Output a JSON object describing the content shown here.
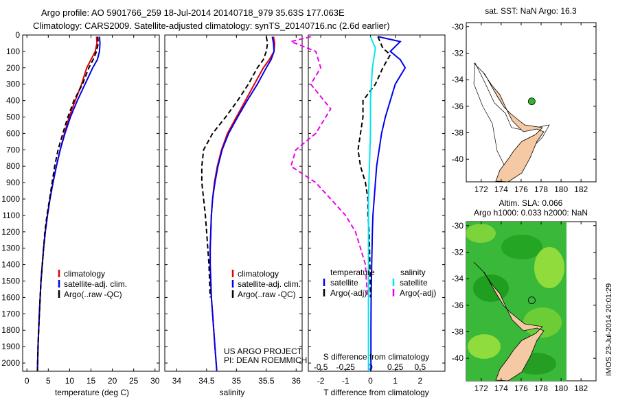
{
  "header": {
    "line1": "Argo profile: AO 5901766_259 18-Jul-2014 20140718_979 35.63S 177.063E",
    "line2": "Climatology: CARS2009. Satellite-adjusted climatology: synTS_20140716.nc (2.6d earlier)"
  },
  "colors": {
    "climatology": "#e00000",
    "satellite": "#0000ee",
    "argo": "#000000",
    "sal_satellite": "#00e5ee",
    "sal_argo": "#ee00ee",
    "land": "#f5c9a3",
    "sla_green": "#2fb82f"
  },
  "legend_profiles": {
    "climatology": "climatology",
    "satellite": "satellite-adj. clim.",
    "argo": "Argo(..raw -QC)"
  },
  "legend_diff": {
    "temperature_title": "temperature",
    "salinity_title": "salinity",
    "t_satellite": "satellite",
    "t_argo": "Argo(-adj)",
    "s_satellite": "satellite",
    "s_argo": "Argo(-adj)"
  },
  "credit": {
    "line1": "US ARGO PROJECT",
    "line2": "PI: DEAN ROEMMICH"
  },
  "map_top": {
    "title": "sat. SST: NaN Argo: 16.3"
  },
  "map_bottom": {
    "title1": "Altim. SLA: 0.066",
    "title2": "Argo h1000: 0.033 h2000: NaN"
  },
  "watermark": "IMOS 23-Jul-2014 20:01:29",
  "chart_data": [
    {
      "type": "line",
      "xlabel": "temperature (deg C)",
      "ylabel": "",
      "xlim": [
        -1,
        31
      ],
      "ylim": [
        2050,
        0
      ],
      "xticks": [
        "0",
        "5",
        "10",
        "15",
        "20",
        "25",
        "30"
      ],
      "yticks": [
        "0",
        "100",
        "200",
        "300",
        "400",
        "500",
        "600",
        "700",
        "800",
        "900",
        "1000",
        "1100",
        "1200",
        "1300",
        "1400",
        "1500",
        "1600",
        "1700",
        "1800",
        "1900",
        "2000"
      ],
      "series": [
        {
          "name": "climatology",
          "style": "solid",
          "color": "#e00000",
          "points": [
            [
              16.3,
              10
            ],
            [
              16.4,
              50
            ],
            [
              16.0,
              100
            ],
            [
              15.0,
              150
            ],
            [
              14.0,
              200
            ],
            [
              12.8,
              300
            ],
            [
              11.3,
              400
            ],
            [
              9.9,
              500
            ],
            [
              8.8,
              600
            ],
            [
              7.8,
              700
            ],
            [
              6.9,
              800
            ],
            [
              6.1,
              900
            ],
            [
              5.4,
              1000
            ],
            [
              4.8,
              1100
            ],
            [
              4.3,
              1200
            ],
            [
              3.9,
              1300
            ],
            [
              3.6,
              1400
            ],
            [
              3.3,
              1500
            ],
            [
              3.1,
              1600
            ],
            [
              2.9,
              1700
            ],
            [
              2.75,
              1800
            ],
            [
              2.6,
              1900
            ],
            [
              2.5,
              2000
            ],
            [
              2.45,
              2050
            ]
          ]
        },
        {
          "name": "satellite-adj. clim.",
          "style": "solid",
          "color": "#0000ee",
          "points": [
            [
              17.0,
              10
            ],
            [
              17.1,
              50
            ],
            [
              17.0,
              100
            ],
            [
              16.5,
              150
            ],
            [
              15.4,
              200
            ],
            [
              13.6,
              300
            ],
            [
              11.8,
              400
            ],
            [
              10.2,
              500
            ],
            [
              8.9,
              600
            ],
            [
              7.8,
              700
            ],
            [
              6.9,
              800
            ],
            [
              6.1,
              900
            ],
            [
              5.4,
              1000
            ],
            [
              4.8,
              1100
            ],
            [
              4.3,
              1200
            ],
            [
              3.9,
              1300
            ],
            [
              3.6,
              1400
            ],
            [
              3.3,
              1500
            ],
            [
              3.1,
              1600
            ],
            [
              2.9,
              1700
            ],
            [
              2.75,
              1800
            ],
            [
              2.6,
              1900
            ],
            [
              2.5,
              2000
            ],
            [
              2.45,
              2050
            ]
          ]
        },
        {
          "name": "Argo(..raw -QC)",
          "style": "dashed",
          "color": "#000000",
          "points": [
            [
              16.6,
              10
            ],
            [
              16.7,
              50
            ],
            [
              16.3,
              100
            ],
            [
              15.5,
              150
            ],
            [
              14.5,
              200
            ],
            [
              13.0,
              300
            ],
            [
              11.0,
              400
            ],
            [
              9.6,
              500
            ],
            [
              8.4,
              600
            ],
            [
              7.3,
              700
            ],
            [
              6.5,
              800
            ],
            [
              5.9,
              900
            ],
            [
              5.3,
              1000
            ],
            [
              4.7,
              1100
            ],
            [
              4.2,
              1200
            ],
            [
              3.9,
              1300
            ],
            [
              3.6,
              1400
            ],
            [
              3.3,
              1500
            ],
            [
              3.1,
              1600
            ],
            [
              2.9,
              1700
            ],
            [
              2.75,
              1800
            ],
            [
              2.6,
              1900
            ],
            [
              2.5,
              2000
            ],
            [
              2.45,
              2050
            ]
          ]
        }
      ]
    },
    {
      "type": "line",
      "xlabel": "salinity",
      "ylabel": "",
      "xlim": [
        33.8,
        36.1
      ],
      "ylim": [
        2050,
        0
      ],
      "xticks": [
        "34",
        "34.5",
        "35",
        "35.5",
        "36"
      ],
      "series": [
        {
          "name": "climatology",
          "style": "solid",
          "color": "#e00000",
          "points": [
            [
              35.62,
              10
            ],
            [
              35.64,
              50
            ],
            [
              35.63,
              100
            ],
            [
              35.55,
              150
            ],
            [
              35.45,
              200
            ],
            [
              35.3,
              300
            ],
            [
              35.15,
              400
            ],
            [
              35.0,
              500
            ],
            [
              34.85,
              600
            ],
            [
              34.75,
              700
            ],
            [
              34.68,
              800
            ],
            [
              34.63,
              900
            ],
            [
              34.6,
              1000
            ],
            [
              34.58,
              1100
            ],
            [
              34.57,
              1200
            ],
            [
              34.56,
              1300
            ],
            [
              34.56,
              1400
            ],
            [
              34.57,
              1500
            ],
            [
              34.58,
              1600
            ],
            [
              34.6,
              1700
            ],
            [
              34.62,
              1800
            ],
            [
              34.64,
              1900
            ],
            [
              34.66,
              2000
            ],
            [
              34.67,
              2050
            ]
          ]
        },
        {
          "name": "satellite-adj. clim.",
          "style": "solid",
          "color": "#0000ee",
          "points": [
            [
              35.6,
              10
            ],
            [
              35.62,
              50
            ],
            [
              35.63,
              100
            ],
            [
              35.58,
              150
            ],
            [
              35.5,
              200
            ],
            [
              35.35,
              300
            ],
            [
              35.18,
              400
            ],
            [
              35.02,
              500
            ],
            [
              34.87,
              600
            ],
            [
              34.76,
              700
            ],
            [
              34.69,
              800
            ],
            [
              34.64,
              900
            ],
            [
              34.6,
              1000
            ],
            [
              34.58,
              1100
            ],
            [
              34.57,
              1200
            ],
            [
              34.56,
              1300
            ],
            [
              34.56,
              1400
            ],
            [
              34.57,
              1500
            ],
            [
              34.58,
              1600
            ],
            [
              34.6,
              1700
            ],
            [
              34.62,
              1800
            ],
            [
              34.64,
              1900
            ],
            [
              34.66,
              2000
            ],
            [
              34.67,
              2050
            ]
          ]
        },
        {
          "name": "Argo(..raw -QC)",
          "style": "dashed",
          "color": "#000000",
          "points": [
            [
              35.5,
              10
            ],
            [
              35.52,
              50
            ],
            [
              35.5,
              100
            ],
            [
              35.45,
              150
            ],
            [
              35.35,
              200
            ],
            [
              35.2,
              300
            ],
            [
              35.02,
              400
            ],
            [
              34.82,
              500
            ],
            [
              34.6,
              600
            ],
            [
              34.45,
              700
            ],
            [
              34.42,
              800
            ],
            [
              34.42,
              900
            ],
            [
              34.45,
              1000
            ],
            [
              34.48,
              1100
            ],
            [
              34.5,
              1200
            ],
            [
              34.52,
              1300
            ],
            [
              34.54,
              1400
            ],
            [
              34.55,
              1500
            ],
            [
              34.56,
              1600
            ]
          ]
        }
      ]
    },
    {
      "type": "line",
      "xlabel": "T difference from climatology",
      "xlabel2": "S difference from climatology",
      "xlim": [
        -2.5,
        3.0
      ],
      "ylim": [
        2050,
        0
      ],
      "xticks": [
        "-2",
        "-1",
        "0",
        "1",
        "2"
      ],
      "xticks2": [
        "-0.5",
        "-0.25",
        "0",
        "0.25",
        "0.5"
      ],
      "series": [
        {
          "name": "temperature satellite",
          "style": "solid",
          "color": "#0000ee",
          "points": [
            [
              0.3,
              10
            ],
            [
              1.2,
              40
            ],
            [
              0.8,
              100
            ],
            [
              1.2,
              150
            ],
            [
              1.4,
              200
            ],
            [
              1.0,
              300
            ],
            [
              0.8,
              400
            ],
            [
              0.6,
              500
            ],
            [
              0.45,
              600
            ],
            [
              0.35,
              700
            ],
            [
              0.25,
              800
            ],
            [
              0.2,
              900
            ],
            [
              0.15,
              1000
            ],
            [
              0.1,
              1100
            ],
            [
              0.08,
              1200
            ],
            [
              0.05,
              1400
            ],
            [
              0.03,
              1600
            ],
            [
              0.02,
              1800
            ],
            [
              0.02,
              2000
            ],
            [
              0.02,
              2050
            ]
          ]
        },
        {
          "name": "temperature Argo(-adj)",
          "style": "dashed",
          "color": "#000000",
          "points": [
            [
              0.3,
              10
            ],
            [
              0.5,
              80
            ],
            [
              0.8,
              120
            ],
            [
              0.5,
              200
            ],
            [
              0.2,
              300
            ],
            [
              -0.3,
              400
            ],
            [
              -0.3,
              500
            ],
            [
              -0.4,
              600
            ],
            [
              -0.5,
              700
            ],
            [
              -0.4,
              800
            ],
            [
              -0.2,
              900
            ],
            [
              -0.1,
              1000
            ],
            [
              -0.1,
              1100
            ],
            [
              -0.05,
              1200
            ],
            [
              -0.02,
              1400
            ],
            [
              0.0,
              1600
            ]
          ]
        },
        {
          "name": "salinity satellite",
          "style": "solid",
          "color": "#00e5ee",
          "points": [
            [
              0.0,
              10
            ],
            [
              0.05,
              80
            ],
            [
              0.02,
              200
            ],
            [
              0.0,
              400
            ],
            [
              0.0,
              600
            ],
            [
              -0.01,
              800
            ],
            [
              -0.02,
              1000
            ],
            [
              -0.02,
              1200
            ],
            [
              -0.02,
              1400
            ],
            [
              -0.02,
              1600
            ],
            [
              -0.02,
              1800
            ],
            [
              -0.02,
              2000
            ],
            [
              -0.02,
              2050
            ]
          ]
        },
        {
          "name": "salinity Argo(-adj)",
          "style": "dashed",
          "color": "#ee00ee",
          "points": [
            [
              -0.6,
              10
            ],
            [
              -0.8,
              40
            ],
            [
              -0.55,
              100
            ],
            [
              -0.5,
              200
            ],
            [
              -0.6,
              300
            ],
            [
              -0.4,
              450
            ],
            [
              -0.55,
              600
            ],
            [
              -0.75,
              700
            ],
            [
              -0.8,
              800
            ],
            [
              -0.55,
              900
            ],
            [
              -0.4,
              1000
            ],
            [
              -0.25,
              1100
            ],
            [
              -0.15,
              1200
            ],
            [
              -0.1,
              1300
            ],
            [
              -0.05,
              1400
            ],
            [
              -0.03,
              1600
            ]
          ]
        }
      ]
    },
    {
      "type": "scatter",
      "title": "sat. SST: NaN Argo: 16.3",
      "xlim": [
        170.5,
        183.5
      ],
      "ylim": [
        -41.7,
        -29.7
      ],
      "xticks": [
        "172",
        "174",
        "176",
        "178",
        "180",
        "182"
      ],
      "yticks": [
        "-30",
        "-32",
        "-34",
        "-36",
        "-38",
        "-40"
      ],
      "points": [
        {
          "lon": 177.06,
          "lat": -35.63
        }
      ]
    },
    {
      "type": "heatmap",
      "title": "Altim. SLA: 0.066",
      "xlim": [
        170.5,
        183.5
      ],
      "ylim": [
        -41.7,
        -29.7
      ],
      "xticks": [
        "172",
        "174",
        "176",
        "178",
        "180",
        "182"
      ],
      "yticks": [
        "-30",
        "-32",
        "-34",
        "-36",
        "-38",
        "-40"
      ],
      "points": [
        {
          "lon": 177.06,
          "lat": -35.63
        }
      ]
    }
  ]
}
